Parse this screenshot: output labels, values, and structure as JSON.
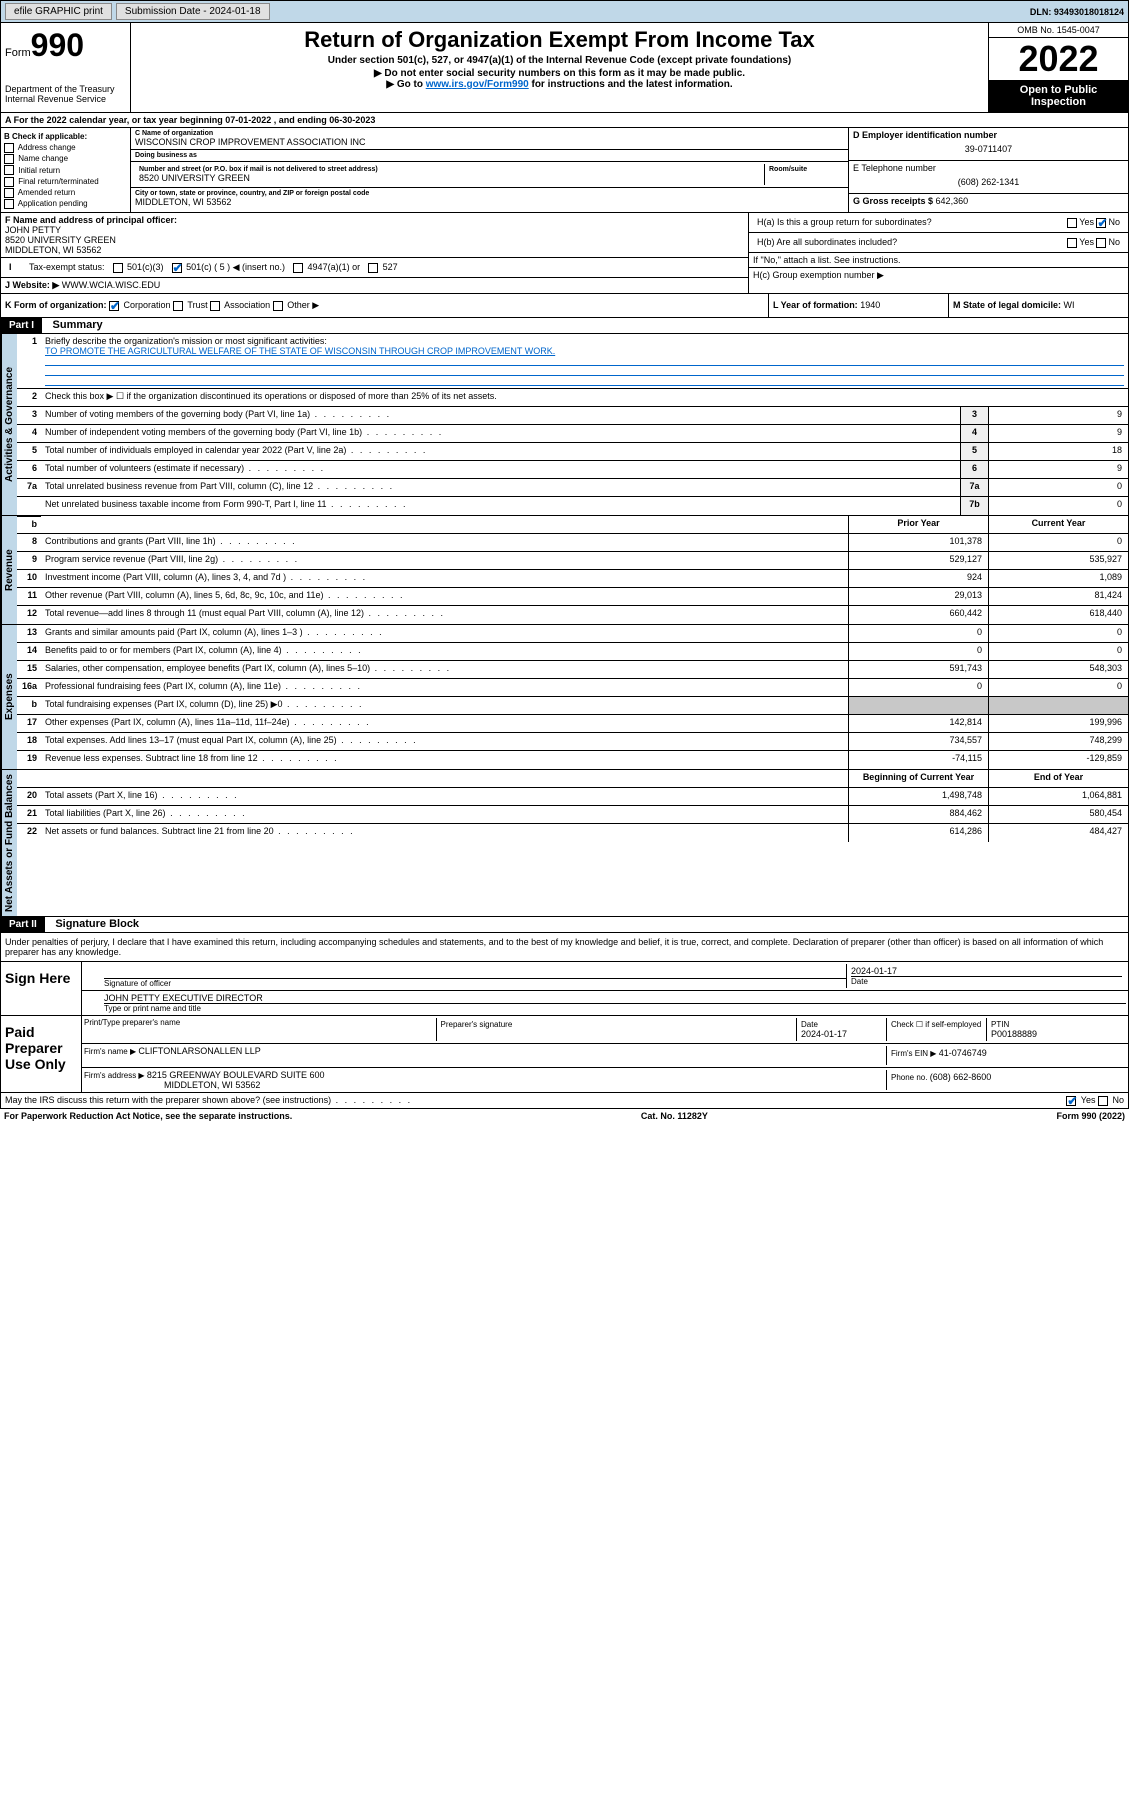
{
  "topbar": {
    "efile": "efile GRAPHIC print",
    "subdate_label": "Submission Date - ",
    "subdate": "2024-01-18",
    "dln_label": "DLN: ",
    "dln": "93493018018124"
  },
  "header": {
    "form_word": "Form",
    "form_num": "990",
    "dept": "Department of the Treasury",
    "irs": "Internal Revenue Service",
    "title": "Return of Organization Exempt From Income Tax",
    "sub": "Under section 501(c), 527, or 4947(a)(1) of the Internal Revenue Code (except private foundations)",
    "instr1": "▶ Do not enter social security numbers on this form as it may be made public.",
    "instr2_pre": "▶ Go to ",
    "instr2_link": "www.irs.gov/Form990",
    "instr2_post": " for instructions and the latest information.",
    "omb": "OMB No. 1545-0047",
    "year": "2022",
    "open": "Open to Public Inspection"
  },
  "taxyear": "For the 2022 calendar year, or tax year beginning 07-01-2022    , and ending 06-30-2023",
  "boxB": {
    "title": "B Check if applicable:",
    "items": [
      "Address change",
      "Name change",
      "Initial return",
      "Final return/terminated",
      "Amended return",
      "Application pending"
    ]
  },
  "boxC": {
    "name_label": "C Name of organization",
    "name": "WISCONSIN CROP IMPROVEMENT ASSOCIATION INC",
    "dba_label": "Doing business as",
    "dba": "",
    "addr_label": "Number and street (or P.O. box if mail is not delivered to street address)",
    "room_label": "Room/suite",
    "addr": "8520 UNIVERSITY GREEN",
    "city_label": "City or town, state or province, country, and ZIP or foreign postal code",
    "city": "MIDDLETON, WI  53562"
  },
  "boxD": {
    "label": "D Employer identification number",
    "val": "39-0711407"
  },
  "boxE": {
    "label": "E Telephone number",
    "val": "(608) 262-1341"
  },
  "boxG": {
    "label": "G Gross receipts $ ",
    "val": "642,360"
  },
  "boxF": {
    "label": "F Name and address of principal officer:",
    "name": "JOHN PETTY",
    "addr": "8520 UNIVERSITY GREEN",
    "city": "MIDDLETON, WI  53562"
  },
  "boxH": {
    "ha": "H(a)  Is this a group return for subordinates?",
    "hb": "H(b)  Are all subordinates included?",
    "hb_note": "If \"No,\" attach a list. See instructions.",
    "hc": "H(c)  Group exemption number ▶",
    "yes": "Yes",
    "no": "No"
  },
  "boxI": {
    "label": "Tax-exempt status:",
    "c3": "501(c)(3)",
    "c5_pre": "501(c) ( 5 ) ◀ (insert no.)",
    "a1": "4947(a)(1) or",
    "527": "527"
  },
  "boxJ": {
    "label": "Website: ▶ ",
    "val": "WWW.WCIA.WISC.EDU"
  },
  "boxK": {
    "label": "K Form of organization:",
    "corp": "Corporation",
    "trust": "Trust",
    "assoc": "Association",
    "other": "Other ▶"
  },
  "boxL": {
    "label": "L Year of formation: ",
    "val": "1940"
  },
  "boxM": {
    "label": "M State of legal domicile: ",
    "val": "WI"
  },
  "part1": {
    "hdr": "Part I",
    "title": "Summary",
    "q1": "Briefly describe the organization's mission or most significant activities:",
    "mission": "TO PROMOTE THE AGRICULTURAL WELFARE OF THE STATE OF WISCONSIN THROUGH CROP IMPROVEMENT WORK.",
    "q2": "Check this box ▶ ☐  if the organization discontinued its operations or disposed of more than 25% of its net assets.",
    "lines_gov": [
      {
        "n": "3",
        "d": "Number of voting members of the governing body (Part VI, line 1a)",
        "c": "3",
        "v": "9"
      },
      {
        "n": "4",
        "d": "Number of independent voting members of the governing body (Part VI, line 1b)",
        "c": "4",
        "v": "9"
      },
      {
        "n": "5",
        "d": "Total number of individuals employed in calendar year 2022 (Part V, line 2a)",
        "c": "5",
        "v": "18"
      },
      {
        "n": "6",
        "d": "Total number of volunteers (estimate if necessary)",
        "c": "6",
        "v": "9"
      },
      {
        "n": "7a",
        "d": "Total unrelated business revenue from Part VIII, column (C), line 12",
        "c": "7a",
        "v": "0"
      },
      {
        "n": "",
        "d": "Net unrelated business taxable income from Form 990-T, Part I, line 11",
        "c": "7b",
        "v": "0"
      }
    ],
    "col_prior": "Prior Year",
    "col_curr": "Current Year",
    "lines_rev": [
      {
        "n": "8",
        "d": "Contributions and grants (Part VIII, line 1h)",
        "p": "101,378",
        "c": "0"
      },
      {
        "n": "9",
        "d": "Program service revenue (Part VIII, line 2g)",
        "p": "529,127",
        "c": "535,927"
      },
      {
        "n": "10",
        "d": "Investment income (Part VIII, column (A), lines 3, 4, and 7d )",
        "p": "924",
        "c": "1,089"
      },
      {
        "n": "11",
        "d": "Other revenue (Part VIII, column (A), lines 5, 6d, 8c, 9c, 10c, and 11e)",
        "p": "29,013",
        "c": "81,424"
      },
      {
        "n": "12",
        "d": "Total revenue—add lines 8 through 11 (must equal Part VIII, column (A), line 12)",
        "p": "660,442",
        "c": "618,440"
      }
    ],
    "lines_exp": [
      {
        "n": "13",
        "d": "Grants and similar amounts paid (Part IX, column (A), lines 1–3 )",
        "p": "0",
        "c": "0"
      },
      {
        "n": "14",
        "d": "Benefits paid to or for members (Part IX, column (A), line 4)",
        "p": "0",
        "c": "0"
      },
      {
        "n": "15",
        "d": "Salaries, other compensation, employee benefits (Part IX, column (A), lines 5–10)",
        "p": "591,743",
        "c": "548,303"
      },
      {
        "n": "16a",
        "d": "Professional fundraising fees (Part IX, column (A), line 11e)",
        "p": "0",
        "c": "0"
      },
      {
        "n": "b",
        "d": "Total fundraising expenses (Part IX, column (D), line 25) ▶0",
        "p": "",
        "c": "",
        "gray": true
      },
      {
        "n": "17",
        "d": "Other expenses (Part IX, column (A), lines 11a–11d, 11f–24e)",
        "p": "142,814",
        "c": "199,996"
      },
      {
        "n": "18",
        "d": "Total expenses. Add lines 13–17 (must equal Part IX, column (A), line 25)",
        "p": "734,557",
        "c": "748,299"
      },
      {
        "n": "19",
        "d": "Revenue less expenses. Subtract line 18 from line 12",
        "p": "-74,115",
        "c": "-129,859"
      }
    ],
    "col_beg": "Beginning of Current Year",
    "col_end": "End of Year",
    "lines_net": [
      {
        "n": "20",
        "d": "Total assets (Part X, line 16)",
        "p": "1,498,748",
        "c": "1,064,881"
      },
      {
        "n": "21",
        "d": "Total liabilities (Part X, line 26)",
        "p": "884,462",
        "c": "580,454"
      },
      {
        "n": "22",
        "d": "Net assets or fund balances. Subtract line 21 from line 20",
        "p": "614,286",
        "c": "484,427"
      }
    ]
  },
  "vtabs": {
    "gov": "Activities & Governance",
    "rev": "Revenue",
    "exp": "Expenses",
    "net": "Net Assets or Fund Balances"
  },
  "part2": {
    "hdr": "Part II",
    "title": "Signature Block",
    "decl": "Under penalties of perjury, I declare that I have examined this return, including accompanying schedules and statements, and to the best of my knowledge and belief, it is true, correct, and complete. Declaration of preparer (other than officer) is based on all information of which preparer has any knowledge."
  },
  "sign": {
    "label": "Sign Here",
    "sig_label": "Signature of officer",
    "date_label": "Date",
    "date": "2024-01-17",
    "name": "JOHN PETTY EXECUTIVE DIRECTOR",
    "name_label": "Type or print name and title"
  },
  "paid": {
    "label": "Paid Preparer Use Only",
    "col1": "Print/Type preparer's name",
    "col2": "Preparer's signature",
    "col3": "Date",
    "date": "2024-01-17",
    "col4_pre": "Check ☐ if self-employed",
    "col5": "PTIN",
    "ptin": "P00188889",
    "firm_label": "Firm's name    ▶ ",
    "firm": "CLIFTONLARSONALLEN LLP",
    "ein_label": "Firm's EIN ▶ ",
    "ein": "41-0746749",
    "addr_label": "Firm's address ▶ ",
    "addr": "8215 GREENWAY BOULEVARD SUITE 600",
    "city": "MIDDLETON, WI  53562",
    "phone_label": "Phone no. ",
    "phone": "(608) 662-8600"
  },
  "discuss": {
    "q": "May the IRS discuss this return with the preparer shown above? (see instructions)",
    "yes": "Yes",
    "no": "No"
  },
  "footer": {
    "pra": "For Paperwork Reduction Act Notice, see the separate instructions.",
    "cat": "Cat. No. 11282Y",
    "form": "Form 990 (2022)"
  }
}
